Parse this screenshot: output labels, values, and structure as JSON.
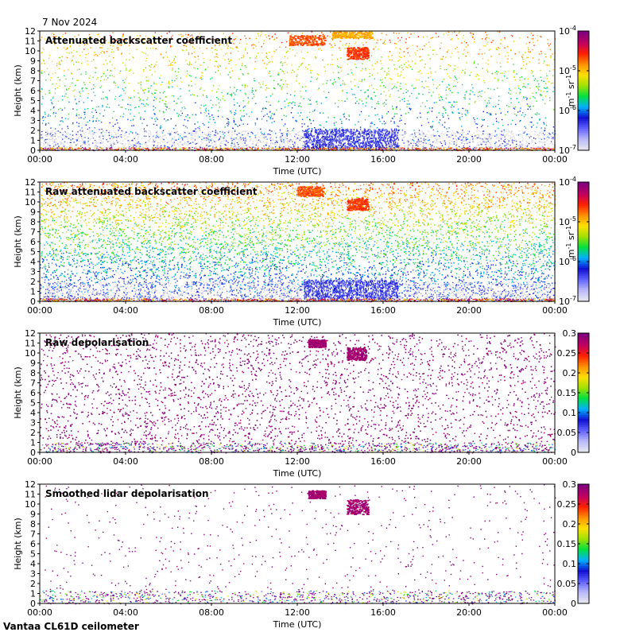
{
  "date": "7 Nov 2024",
  "footer": "Vantaa CL61D ceilometer",
  "x_tick_labels": [
    "00:00",
    "04:00",
    "08:00",
    "12:00",
    "16:00",
    "20:00",
    "00:00"
  ],
  "y_tick_labels": [
    "0",
    "1",
    "2",
    "3",
    "4",
    "5",
    "6",
    "7",
    "8",
    "9",
    "10",
    "11",
    "12"
  ],
  "xlabel": "Time (UTC)",
  "ylabel": "Height (km)",
  "chart_data": [
    {
      "type": "heatmap",
      "title": "Attenuated backscatter coefficient",
      "xlabel": "Time (UTC)",
      "ylabel": "Height (km)",
      "xlim": [
        0,
        24
      ],
      "ylim": [
        0,
        12
      ],
      "x_unit": "hours UTC",
      "colorbar": {
        "scale": "log",
        "range": [
          1e-07,
          0.0001
        ],
        "tick_values": [
          1e-07,
          1e-06,
          1e-05,
          0.0001
        ],
        "tick_labels": [
          [
            "10",
            "-7"
          ],
          [
            "10",
            "-6"
          ],
          [
            "10",
            "-5"
          ],
          [
            "10",
            "-4"
          ]
        ],
        "unit": [
          "m",
          "-1",
          " sr",
          "-1"
        ]
      },
      "features": {
        "noise_density": 0.3,
        "low_level_noise_top_km": 2.0,
        "surface_layer_km": [
          0,
          0.3
        ],
        "clouds": [
          {
            "t": [
              11.6,
              13.3
            ],
            "z": [
              10.6,
              11.6
            ],
            "v": 0.78
          },
          {
            "t": [
              13.6,
              15.5
            ],
            "z": [
              11.3,
              12.0
            ],
            "v": 0.7
          },
          {
            "t": [
              14.3,
              15.3
            ],
            "z": [
              9.2,
              10.4
            ],
            "v": 0.8
          }
        ],
        "precip_streaks": [
          {
            "t": [
              12.3,
              16.7
            ],
            "z": [
              0.2,
              2.2
            ],
            "v": 0.18
          }
        ]
      }
    },
    {
      "type": "heatmap",
      "title": "Raw attenuated backscatter coefficient",
      "xlabel": "Time (UTC)",
      "ylabel": "Height (km)",
      "xlim": [
        0,
        24
      ],
      "ylim": [
        0,
        12
      ],
      "x_unit": "hours UTC",
      "colorbar": {
        "scale": "log",
        "range": [
          1e-07,
          0.0001
        ],
        "tick_values": [
          1e-07,
          1e-06,
          1e-05,
          0.0001
        ],
        "tick_labels": [
          [
            "10",
            "-7"
          ],
          [
            "10",
            "-6"
          ],
          [
            "10",
            "-5"
          ],
          [
            "10",
            "-4"
          ]
        ],
        "unit": [
          "m",
          "-1",
          " sr",
          "-1"
        ]
      },
      "features": {
        "noise_density": 0.85,
        "low_level_noise_top_km": 2.0,
        "surface_layer_km": [
          0,
          0.3
        ],
        "clouds": [
          {
            "t": [
              12.0,
              13.2
            ],
            "z": [
              10.6,
              11.6
            ],
            "v": 0.78
          },
          {
            "t": [
              14.3,
              15.3
            ],
            "z": [
              9.2,
              10.4
            ],
            "v": 0.8
          }
        ],
        "precip_streaks": [
          {
            "t": [
              12.3,
              16.7
            ],
            "z": [
              0.2,
              2.2
            ],
            "v": 0.18
          }
        ]
      }
    },
    {
      "type": "heatmap",
      "title": "Raw depolarisation",
      "xlabel": "Time (UTC)",
      "ylabel": "Height (km)",
      "xlim": [
        0,
        24
      ],
      "ylim": [
        0,
        12
      ],
      "x_unit": "hours UTC",
      "colorbar": {
        "scale": "linear",
        "range": [
          0,
          0.3
        ],
        "tick_values": [
          0,
          0.05,
          0.1,
          0.15,
          0.2,
          0.25,
          0.3
        ],
        "tick_labels": [
          "0",
          "0.05",
          "0.1",
          "0.15",
          "0.2",
          "0.25",
          "0.3"
        ]
      },
      "features": {
        "noise_density": 0.6,
        "dominant_value": 0.3,
        "surface_layer_km": [
          0,
          1.0
        ],
        "clouds": [
          {
            "t": [
              12.5,
              13.3
            ],
            "z": [
              10.6,
              11.4
            ],
            "v": 0.95
          },
          {
            "t": [
              14.3,
              15.2
            ],
            "z": [
              9.3,
              10.6
            ],
            "v": 0.95
          }
        ]
      }
    },
    {
      "type": "heatmap",
      "title": "Smoothed lidar depolarisation",
      "xlabel": "Time (UTC)",
      "ylabel": "Height (km)",
      "xlim": [
        0,
        24
      ],
      "ylim": [
        0,
        12
      ],
      "x_unit": "hours UTC",
      "colorbar": {
        "scale": "linear",
        "range": [
          0,
          0.3
        ],
        "tick_values": [
          0,
          0.05,
          0.1,
          0.15,
          0.2,
          0.25,
          0.3
        ],
        "tick_labels": [
          "0",
          "0.05",
          "0.1",
          "0.15",
          "0.2",
          "0.25",
          "0.3"
        ]
      },
      "features": {
        "noise_density": 0.07,
        "dominant_value": 0.3,
        "surface_layer_km": [
          0,
          1.3
        ],
        "clouds": [
          {
            "t": [
              12.5,
              13.3
            ],
            "z": [
              10.6,
              11.4
            ],
            "v": 0.95
          },
          {
            "t": [
              14.3,
              15.3
            ],
            "z": [
              9.0,
              10.5
            ],
            "v": 0.95
          }
        ]
      }
    }
  ],
  "colors": {
    "colormap": [
      "#e8e8f0",
      "#b8b8f8",
      "#6060ff",
      "#1010d0",
      "#00b0ff",
      "#00e040",
      "#a0e000",
      "#ffe000",
      "#ff9000",
      "#ff2000",
      "#c00060",
      "#800080"
    ]
  }
}
